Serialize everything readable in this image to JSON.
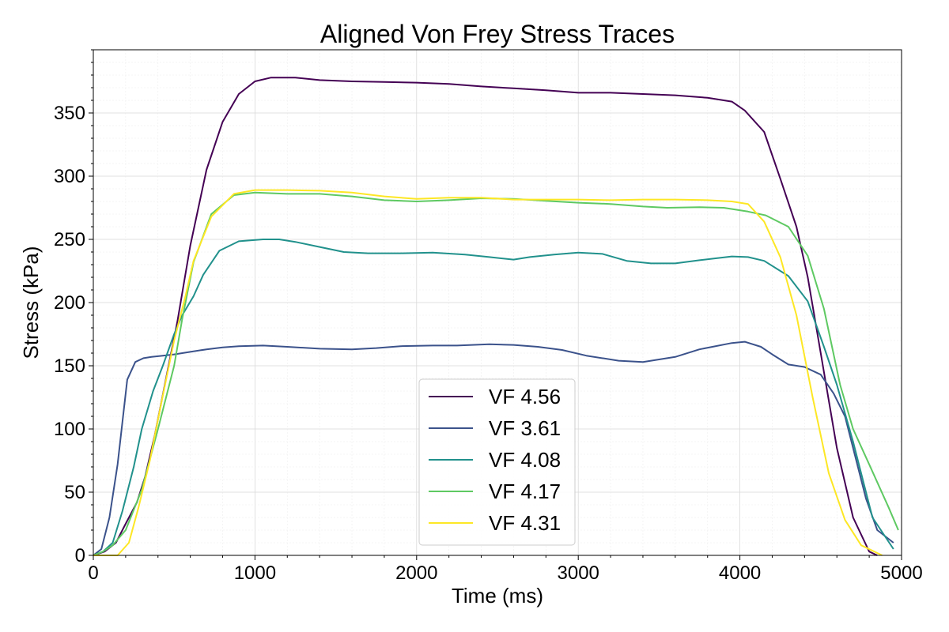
{
  "chart_data": {
    "type": "line",
    "title": "Aligned Von Frey Stress Traces",
    "xlabel": "Time (ms)",
    "ylabel": "Stress (kPa)",
    "xlim": [
      0,
      5000
    ],
    "ylim": [
      0,
      400
    ],
    "xticks": [
      0,
      1000,
      2000,
      3000,
      4000,
      5000
    ],
    "yticks": [
      0,
      50,
      100,
      150,
      200,
      250,
      300,
      350
    ],
    "grid": true,
    "legend_position": "lower-center",
    "series": [
      {
        "name": "VF 4.56",
        "color": "#440154",
        "points": [
          [
            0,
            0
          ],
          [
            70,
            3
          ],
          [
            140,
            10
          ],
          [
            200,
            25
          ],
          [
            270,
            42
          ],
          [
            320,
            62
          ],
          [
            380,
            95
          ],
          [
            450,
            140
          ],
          [
            520,
            185
          ],
          [
            600,
            245
          ],
          [
            700,
            305
          ],
          [
            800,
            343
          ],
          [
            900,
            365
          ],
          [
            1000,
            375
          ],
          [
            1100,
            378
          ],
          [
            1250,
            378
          ],
          [
            1400,
            376
          ],
          [
            1600,
            375
          ],
          [
            1800,
            374.5
          ],
          [
            2000,
            374
          ],
          [
            2200,
            373
          ],
          [
            2400,
            371
          ],
          [
            2600,
            369.5
          ],
          [
            2800,
            368
          ],
          [
            3000,
            366
          ],
          [
            3200,
            366
          ],
          [
            3400,
            365
          ],
          [
            3600,
            364
          ],
          [
            3800,
            362
          ],
          [
            3950,
            359
          ],
          [
            4030,
            352
          ],
          [
            4150,
            335
          ],
          [
            4250,
            298
          ],
          [
            4350,
            260
          ],
          [
            4420,
            220
          ],
          [
            4500,
            160
          ],
          [
            4600,
            85
          ],
          [
            4700,
            30
          ],
          [
            4800,
            3
          ],
          [
            4850,
            0
          ]
        ]
      },
      {
        "name": "VF 3.61",
        "color": "#3b528b",
        "points": [
          [
            0,
            0
          ],
          [
            50,
            5
          ],
          [
            100,
            30
          ],
          [
            150,
            72
          ],
          [
            210,
            139
          ],
          [
            260,
            153
          ],
          [
            310,
            156
          ],
          [
            360,
            157
          ],
          [
            430,
            158
          ],
          [
            500,
            159
          ],
          [
            600,
            161
          ],
          [
            700,
            163
          ],
          [
            800,
            164.5
          ],
          [
            900,
            165.5
          ],
          [
            1050,
            166
          ],
          [
            1200,
            165
          ],
          [
            1400,
            163.5
          ],
          [
            1600,
            163
          ],
          [
            1750,
            164
          ],
          [
            1900,
            165.5
          ],
          [
            2100,
            166
          ],
          [
            2250,
            166
          ],
          [
            2450,
            167
          ],
          [
            2600,
            166.5
          ],
          [
            2750,
            165
          ],
          [
            2900,
            162.5
          ],
          [
            3050,
            158
          ],
          [
            3250,
            154
          ],
          [
            3400,
            153
          ],
          [
            3600,
            157
          ],
          [
            3750,
            163
          ],
          [
            3950,
            168
          ],
          [
            4030,
            169
          ],
          [
            4130,
            165
          ],
          [
            4200,
            159
          ],
          [
            4300,
            151
          ],
          [
            4400,
            149
          ],
          [
            4500,
            143
          ],
          [
            4580,
            128
          ],
          [
            4650,
            110
          ],
          [
            4700,
            85
          ],
          [
            4780,
            45
          ],
          [
            4850,
            20
          ],
          [
            4950,
            10
          ]
        ]
      },
      {
        "name": "VF 4.08",
        "color": "#21918c",
        "points": [
          [
            0,
            0
          ],
          [
            60,
            3
          ],
          [
            120,
            10
          ],
          [
            180,
            35
          ],
          [
            250,
            70
          ],
          [
            300,
            100
          ],
          [
            370,
            130
          ],
          [
            430,
            150
          ],
          [
            500,
            175
          ],
          [
            550,
            190
          ],
          [
            620,
            205
          ],
          [
            680,
            222
          ],
          [
            780,
            241
          ],
          [
            900,
            248.5
          ],
          [
            1050,
            250
          ],
          [
            1150,
            250
          ],
          [
            1250,
            248
          ],
          [
            1400,
            244
          ],
          [
            1550,
            240
          ],
          [
            1700,
            239
          ],
          [
            1900,
            239
          ],
          [
            2100,
            239.5
          ],
          [
            2300,
            238
          ],
          [
            2450,
            236
          ],
          [
            2600,
            234
          ],
          [
            2700,
            236
          ],
          [
            2850,
            238
          ],
          [
            3000,
            239.5
          ],
          [
            3150,
            238.5
          ],
          [
            3300,
            233
          ],
          [
            3450,
            231
          ],
          [
            3600,
            231
          ],
          [
            3750,
            233.5
          ],
          [
            3850,
            235
          ],
          [
            3950,
            236.5
          ],
          [
            4050,
            236
          ],
          [
            4150,
            233
          ],
          [
            4300,
            221
          ],
          [
            4420,
            201
          ],
          [
            4520,
            165
          ],
          [
            4600,
            135
          ],
          [
            4700,
            90
          ],
          [
            4820,
            30
          ],
          [
            4950,
            5
          ]
        ]
      },
      {
        "name": "VF 4.17",
        "color": "#5ec962",
        "points": [
          [
            0,
            0
          ],
          [
            60,
            3
          ],
          [
            120,
            8
          ],
          [
            200,
            20
          ],
          [
            300,
            52
          ],
          [
            400,
            100
          ],
          [
            500,
            150
          ],
          [
            550,
            187
          ],
          [
            620,
            232
          ],
          [
            730,
            270
          ],
          [
            870,
            285
          ],
          [
            1000,
            287
          ],
          [
            1200,
            286
          ],
          [
            1400,
            286
          ],
          [
            1600,
            284
          ],
          [
            1800,
            281
          ],
          [
            2000,
            280
          ],
          [
            2200,
            281
          ],
          [
            2400,
            282.5
          ],
          [
            2600,
            282
          ],
          [
            2800,
            280.5
          ],
          [
            3000,
            279
          ],
          [
            3200,
            278
          ],
          [
            3400,
            276
          ],
          [
            3550,
            275
          ],
          [
            3750,
            275.5
          ],
          [
            3900,
            275
          ],
          [
            4050,
            272
          ],
          [
            4160,
            269
          ],
          [
            4300,
            260
          ],
          [
            4420,
            237
          ],
          [
            4520,
            195
          ],
          [
            4620,
            135
          ],
          [
            4700,
            100
          ],
          [
            4800,
            72
          ],
          [
            4920,
            38
          ],
          [
            4980,
            20
          ]
        ]
      },
      {
        "name": "VF 4.31",
        "color": "#fde725",
        "points": [
          [
            0,
            0
          ],
          [
            150,
            0
          ],
          [
            220,
            10
          ],
          [
            280,
            38
          ],
          [
            350,
            75
          ],
          [
            420,
            120
          ],
          [
            500,
            170
          ],
          [
            570,
            205
          ],
          [
            620,
            233
          ],
          [
            730,
            268
          ],
          [
            870,
            286
          ],
          [
            1000,
            289
          ],
          [
            1200,
            289
          ],
          [
            1400,
            288.5
          ],
          [
            1600,
            287
          ],
          [
            1800,
            284
          ],
          [
            2000,
            282
          ],
          [
            2200,
            283
          ],
          [
            2400,
            283
          ],
          [
            2600,
            281.5
          ],
          [
            2800,
            281.5
          ],
          [
            3000,
            281.5
          ],
          [
            3200,
            281
          ],
          [
            3400,
            281.5
          ],
          [
            3600,
            281.5
          ],
          [
            3800,
            281
          ],
          [
            3950,
            280
          ],
          [
            4050,
            278
          ],
          [
            4150,
            264
          ],
          [
            4250,
            236
          ],
          [
            4350,
            190
          ],
          [
            4450,
            125
          ],
          [
            4550,
            65
          ],
          [
            4650,
            28
          ],
          [
            4750,
            8
          ],
          [
            4880,
            0
          ]
        ]
      }
    ]
  }
}
